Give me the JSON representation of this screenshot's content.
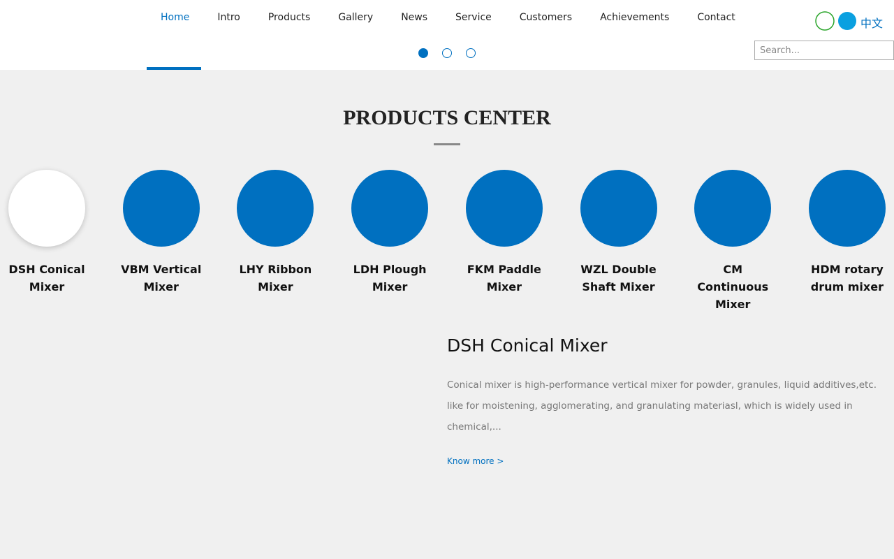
{
  "nav": {
    "items": [
      "Home",
      "Intro",
      "Products",
      "Gallery",
      "News",
      "Service",
      "Customers",
      "Achievements",
      "Contact"
    ],
    "language": "中文",
    "search_placeholder": "Search..."
  },
  "section": {
    "title": "PRODUCTS CENTER",
    "products": [
      "DSH Conical Mixer",
      "VBM Vertical Mixer",
      "LHY Ribbon Mixer",
      "LDH Plough Mixer",
      "FKM Paddle Mixer",
      "WZL Double Shaft Mixer",
      "CM Continuous Mixer",
      "HDM rotary drum mixer"
    ],
    "detail": {
      "title": "DSH Conical Mixer",
      "description": "Conical mixer is high-performance vertical mixer for powder, granules, liquid additives,etc. like for moistening, agglomerating, and granulating materiasl, which is widely used in chemical,...",
      "link": "Know more >"
    }
  }
}
